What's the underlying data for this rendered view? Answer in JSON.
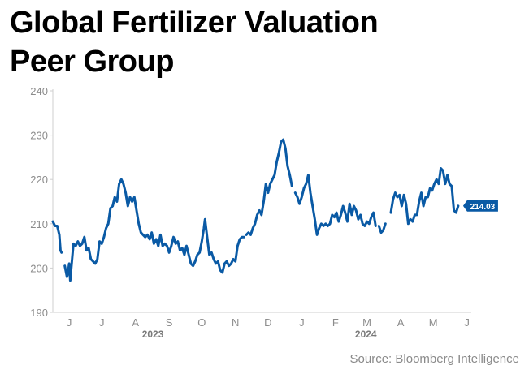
{
  "title_line1": "Global Fertilizer Valuation",
  "title_line2": "Peer Group",
  "source": "Source: Bloomberg Intelligence",
  "colors": {
    "line": "#0a5aa5",
    "label_bg": "#0a5aa5",
    "axis": "#cfcfcf",
    "text": "#8c8c8c"
  },
  "chart_data": {
    "type": "line",
    "ylim": [
      190,
      240
    ],
    "yticks": [
      190,
      200,
      210,
      220,
      230,
      240
    ],
    "xlim": [
      "2023-06-01",
      "2024-06-20"
    ],
    "xtick_labels": [
      {
        "label": "J",
        "date": "2023-06-16"
      },
      {
        "label": "J",
        "date": "2023-07-16"
      },
      {
        "label": "A",
        "date": "2023-08-16"
      },
      {
        "label": "S",
        "date": "2023-09-16"
      },
      {
        "label": "O",
        "date": "2023-10-16"
      },
      {
        "label": "N",
        "date": "2023-11-16"
      },
      {
        "label": "D",
        "date": "2023-12-16"
      },
      {
        "label": "J",
        "date": "2024-01-16"
      },
      {
        "label": "F",
        "date": "2024-02-16"
      },
      {
        "label": "M",
        "date": "2024-03-16"
      },
      {
        "label": "A",
        "date": "2024-04-16"
      },
      {
        "label": "M",
        "date": "2024-05-16"
      },
      {
        "label": "J",
        "date": "2024-06-16"
      }
    ],
    "year_labels": [
      {
        "label": "2023",
        "date": "2023-09-01"
      },
      {
        "label": "2024",
        "date": "2024-03-15"
      }
    ],
    "last_value_label": "214.03",
    "series": [
      {
        "segments": [
          [
            [
              "2023-06-01",
              210.5
            ],
            [
              "2023-06-03",
              209.5
            ],
            [
              "2023-06-05",
              209.5
            ],
            [
              "2023-06-07",
              207.5
            ],
            [
              "2023-06-08",
              204
            ],
            [
              "2023-06-09",
              203.5
            ]
          ],
          [
            [
              "2023-06-12",
              200.5
            ],
            [
              "2023-06-14",
              198
            ],
            [
              "2023-06-15",
              199
            ],
            [
              "2023-06-16",
              201
            ],
            [
              "2023-06-17",
              197.2
            ],
            [
              "2023-06-18",
              200
            ],
            [
              "2023-06-20",
              205.5
            ],
            [
              "2023-06-22",
              205
            ],
            [
              "2023-06-24",
              206
            ],
            [
              "2023-06-26",
              205
            ],
            [
              "2023-06-28",
              205.5
            ],
            [
              "2023-06-30",
              207
            ],
            [
              "2023-07-02",
              204
            ],
            [
              "2023-07-04",
              204.5
            ],
            [
              "2023-07-06",
              202
            ],
            [
              "2023-07-08",
              201.5
            ],
            [
              "2023-07-10",
              201
            ],
            [
              "2023-07-12",
              202
            ],
            [
              "2023-07-14",
              206
            ],
            [
              "2023-07-16",
              205.5
            ],
            [
              "2023-07-18",
              207
            ],
            [
              "2023-07-20",
              209
            ],
            [
              "2023-07-22",
              210
            ],
            [
              "2023-07-24",
              213.5
            ],
            [
              "2023-07-26",
              214
            ],
            [
              "2023-07-28",
              216
            ],
            [
              "2023-07-30",
              215
            ],
            [
              "2023-08-01",
              219
            ],
            [
              "2023-08-03",
              220
            ],
            [
              "2023-08-05",
              219
            ],
            [
              "2023-08-07",
              217
            ],
            [
              "2023-08-09",
              214
            ],
            [
              "2023-08-11",
              216
            ],
            [
              "2023-08-13",
              215
            ],
            [
              "2023-08-15",
              216
            ],
            [
              "2023-08-17",
              213
            ],
            [
              "2023-08-19",
              210
            ],
            [
              "2023-08-21",
              208
            ],
            [
              "2023-08-23",
              207.5
            ],
            [
              "2023-08-25",
              207
            ],
            [
              "2023-08-27",
              207.5
            ],
            [
              "2023-08-29",
              206.5
            ],
            [
              "2023-08-31",
              208
            ],
            [
              "2023-09-02",
              205.5
            ],
            [
              "2023-09-04",
              206.5
            ],
            [
              "2023-09-06",
              205
            ],
            [
              "2023-09-08",
              207.5
            ],
            [
              "2023-09-10",
              205
            ],
            [
              "2023-09-12",
              205.5
            ],
            [
              "2023-09-14",
              205
            ],
            [
              "2023-09-16",
              203.5
            ],
            [
              "2023-09-18",
              205
            ],
            [
              "2023-09-20",
              207
            ],
            [
              "2023-09-22",
              205.5
            ],
            [
              "2023-09-24",
              206
            ],
            [
              "2023-09-26",
              204
            ],
            [
              "2023-09-28",
              204.5
            ],
            [
              "2023-09-30",
              203
            ],
            [
              "2023-10-02",
              205
            ],
            [
              "2023-10-04",
              203
            ],
            [
              "2023-10-06",
              201
            ],
            [
              "2023-10-08",
              200.5
            ],
            [
              "2023-10-10",
              201.5
            ],
            [
              "2023-10-12",
              203
            ],
            [
              "2023-10-14",
              203.5
            ],
            [
              "2023-10-16",
              206
            ],
            [
              "2023-10-18",
              209
            ],
            [
              "2023-10-19",
              211
            ],
            [
              "2023-10-21",
              207
            ],
            [
              "2023-10-23",
              203
            ],
            [
              "2023-10-25",
              203.5
            ],
            [
              "2023-10-27",
              202
            ],
            [
              "2023-10-29",
              201
            ],
            [
              "2023-10-31",
              201.5
            ],
            [
              "2023-11-02",
              199.5
            ],
            [
              "2023-11-04",
              199
            ],
            [
              "2023-11-06",
              201
            ],
            [
              "2023-11-08",
              201.5
            ],
            [
              "2023-11-10",
              200.5
            ],
            [
              "2023-11-12",
              201
            ],
            [
              "2023-11-14",
              202
            ],
            [
              "2023-11-16",
              201.5
            ],
            [
              "2023-11-18",
              205
            ],
            [
              "2023-11-20",
              206.5
            ],
            [
              "2023-11-22",
              207
            ],
            [
              "2023-11-24",
              207
            ]
          ],
          [
            [
              "2023-11-26",
              207.5
            ],
            [
              "2023-11-28",
              208
            ],
            [
              "2023-11-30",
              207.5
            ],
            [
              "2023-12-02",
              209
            ],
            [
              "2023-12-04",
              210
            ],
            [
              "2023-12-06",
              212
            ],
            [
              "2023-12-08",
              213
            ],
            [
              "2023-12-10",
              212
            ],
            [
              "2023-12-12",
              215
            ],
            [
              "2023-12-14",
              219
            ],
            [
              "2023-12-16",
              217
            ],
            [
              "2023-12-18",
              219
            ],
            [
              "2023-12-20",
              220
            ],
            [
              "2023-12-22",
              221
            ],
            [
              "2023-12-24",
              224
            ],
            [
              "2023-12-26",
              226
            ],
            [
              "2023-12-28",
              228.5
            ],
            [
              "2023-12-30",
              229
            ],
            [
              "2024-01-01",
              227
            ],
            [
              "2024-01-03",
              223
            ],
            [
              "2024-01-05",
              221
            ],
            [
              "2024-01-07",
              218.5
            ]
          ],
          [
            [
              "2024-01-10",
              217
            ],
            [
              "2024-01-12",
              216
            ],
            [
              "2024-01-14",
              214.5
            ],
            [
              "2024-01-16",
              216
            ],
            [
              "2024-01-18",
              218
            ],
            [
              "2024-01-20",
              219
            ],
            [
              "2024-01-22",
              221
            ],
            [
              "2024-01-24",
              217
            ],
            [
              "2024-01-26",
              214
            ],
            [
              "2024-01-28",
              211
            ],
            [
              "2024-01-30",
              207.5
            ],
            [
              "2024-02-01",
              209
            ],
            [
              "2024-02-03",
              210
            ],
            [
              "2024-02-05",
              209.5
            ],
            [
              "2024-02-07",
              210
            ],
            [
              "2024-02-09",
              209.5
            ],
            [
              "2024-02-11",
              210
            ],
            [
              "2024-02-13",
              212
            ],
            [
              "2024-02-15",
              211.5
            ],
            [
              "2024-02-17",
              212.5
            ],
            [
              "2024-02-19",
              210.5
            ],
            [
              "2024-02-21",
              212
            ],
            [
              "2024-02-23",
              214
            ],
            [
              "2024-02-25",
              212.5
            ],
            [
              "2024-02-27",
              210.5
            ],
            [
              "2024-02-29",
              214.5
            ],
            [
              "2024-03-02",
              212
            ],
            [
              "2024-03-04",
              214
            ],
            [
              "2024-03-06",
              213
            ],
            [
              "2024-03-08",
              211
            ],
            [
              "2024-03-10",
              212
            ],
            [
              "2024-03-12",
              210
            ],
            [
              "2024-03-14",
              209.5
            ],
            [
              "2024-03-16",
              210.5
            ],
            [
              "2024-03-18",
              210
            ],
            [
              "2024-03-20",
              211.5
            ],
            [
              "2024-03-22",
              212.5
            ],
            [
              "2024-03-24",
              209.5
            ]
          ],
          [
            [
              "2024-03-27",
              209.5
            ],
            [
              "2024-03-29",
              208
            ],
            [
              "2024-03-31",
              208.5
            ],
            [
              "2024-04-02",
              210
            ]
          ],
          [
            [
              "2024-04-07",
              212.5
            ],
            [
              "2024-04-09",
              215.5
            ],
            [
              "2024-04-11",
              217
            ],
            [
              "2024-04-13",
              216
            ],
            [
              "2024-04-15",
              216.5
            ],
            [
              "2024-04-17",
              214
            ],
            [
              "2024-04-19",
              216.5
            ],
            [
              "2024-04-21",
              214.5
            ],
            [
              "2024-04-23",
              210
            ],
            [
              "2024-04-25",
              211
            ],
            [
              "2024-04-27",
              210.5
            ],
            [
              "2024-04-29",
              212
            ],
            [
              "2024-05-01",
              212
            ],
            [
              "2024-05-03",
              215
            ],
            [
              "2024-05-05",
              217
            ],
            [
              "2024-05-07",
              214
            ],
            [
              "2024-05-09",
              216
            ],
            [
              "2024-05-11",
              216
            ],
            [
              "2024-05-13",
              218
            ],
            [
              "2024-05-15",
              217.5
            ],
            [
              "2024-05-17",
              219
            ],
            [
              "2024-05-19",
              220
            ],
            [
              "2024-05-21",
              219
            ],
            [
              "2024-05-23",
              222.5
            ],
            [
              "2024-05-25",
              222
            ],
            [
              "2024-05-27",
              219
            ],
            [
              "2024-05-29",
              221
            ],
            [
              "2024-05-31",
              219
            ],
            [
              "2024-06-02",
              218.5
            ],
            [
              "2024-06-04",
              213
            ],
            [
              "2024-06-06",
              212.5
            ],
            [
              "2024-06-08",
              214.03
            ]
          ]
        ]
      }
    ]
  }
}
